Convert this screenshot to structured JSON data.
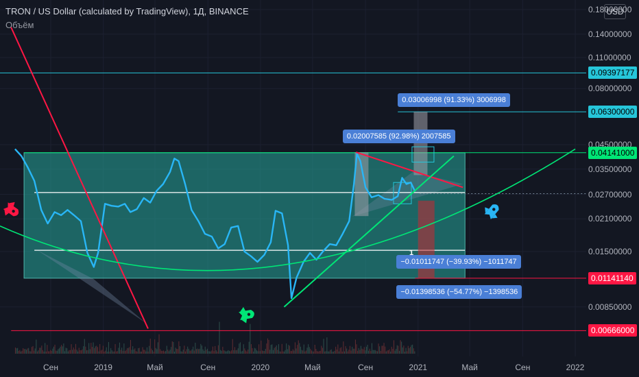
{
  "header": {
    "title": "TRON / US Dollar (calculated by TradingView), 1Д, BINANCE",
    "subtitle": "Объём",
    "currency": "USD"
  },
  "chart_data": {
    "type": "line",
    "ylim": [
      0.0058,
      0.18
    ],
    "yscale": "log",
    "yticks": [
      "0.18000000",
      "0.14000000",
      "0.11000000",
      "0.08000000",
      "0.04500000",
      "0.03500000",
      "0.02700000",
      "0.02100000",
      "0.01500000",
      "0.00850000"
    ],
    "ytick_values": [
      0.18,
      0.14,
      0.11,
      0.08,
      0.045,
      0.035,
      0.027,
      0.021,
      0.015,
      0.0085
    ],
    "xticks": [
      "Сен",
      "2019",
      "Май",
      "Сен",
      "2020",
      "Май",
      "Сен",
      "2021",
      "Май",
      "Сен",
      "2022"
    ],
    "xtick_dates": [
      "2018-09-01",
      "2019-01-01",
      "2019-05-01",
      "2019-09-01",
      "2020-01-01",
      "2020-05-01",
      "2020-09-01",
      "2021-01-01",
      "2021-05-01",
      "2021-09-01",
      "2022-01-01"
    ],
    "price_tags": [
      {
        "label": "0.09397177",
        "value": 0.09397177,
        "color": "#26c6da",
        "text": "#000000"
      },
      {
        "label": "0.06300000",
        "value": 0.063,
        "color": "#26c6da",
        "text": "#000000"
      },
      {
        "label": "0.04141000",
        "value": 0.04141,
        "color": "#00e676",
        "text": "#000000"
      },
      {
        "label": "0.01141140",
        "value": 0.0114114,
        "color": "#ff1744",
        "text": "#ffffff"
      },
      {
        "label": "0.00666000",
        "value": 0.00666,
        "color": "#ff1744",
        "text": "#ffffff"
      }
    ],
    "range_box": {
      "top": 0.04141,
      "bottom": 0.0114114,
      "start": "2018-07-01",
      "end": "2021-04-20"
    },
    "mid_lines": [
      0.0275,
      0.0152
    ],
    "measurements": [
      {
        "label": "0.03006998 (91.33%) 3006998",
        "from": 0.0329,
        "to": 0.063,
        "date": "2020-12-15"
      },
      {
        "label": "0.02007585 (92.98%) 2007585",
        "from": 0.0216,
        "to": 0.0416,
        "date": "2020-08-12"
      },
      {
        "label": "−0.01011747 (−39.93%) −1011747",
        "from": 0.0253,
        "to": 0.0152,
        "date": "2021-01-01"
      },
      {
        "label": "−0.01398536 (−54.77%) −1398536",
        "from": 0.0253,
        "to": 0.0114,
        "date": "2021-01-08"
      }
    ],
    "wave_label": "1",
    "series": [
      {
        "color": "#29b6f6",
        "points": [
          [
            "2018-06-10",
            0.043
          ],
          [
            "2018-06-25",
            0.04
          ],
          [
            "2018-07-10",
            0.0355
          ],
          [
            "2018-07-25",
            0.031
          ],
          [
            "2018-08-10",
            0.023
          ],
          [
            "2018-08-25",
            0.02
          ],
          [
            "2018-09-10",
            0.0225
          ],
          [
            "2018-09-25",
            0.0218
          ],
          [
            "2018-10-10",
            0.023
          ],
          [
            "2018-10-25",
            0.0218
          ],
          [
            "2018-11-10",
            0.0205
          ],
          [
            "2018-11-25",
            0.0148
          ],
          [
            "2018-12-10",
            0.0128
          ],
          [
            "2018-12-20",
            0.0148
          ],
          [
            "2019-01-05",
            0.0245
          ],
          [
            "2019-01-20",
            0.024
          ],
          [
            "2019-02-05",
            0.0238
          ],
          [
            "2019-02-20",
            0.0245
          ],
          [
            "2019-03-05",
            0.0225
          ],
          [
            "2019-03-20",
            0.0232
          ],
          [
            "2019-04-05",
            0.026
          ],
          [
            "2019-04-20",
            0.0248
          ],
          [
            "2019-05-05",
            0.028
          ],
          [
            "2019-05-20",
            0.03
          ],
          [
            "2019-06-05",
            0.034
          ],
          [
            "2019-06-15",
            0.039
          ],
          [
            "2019-06-25",
            0.038
          ],
          [
            "2019-07-10",
            0.03
          ],
          [
            "2019-07-25",
            0.023
          ],
          [
            "2019-08-10",
            0.0205
          ],
          [
            "2019-08-25",
            0.018
          ],
          [
            "2019-09-10",
            0.0175
          ],
          [
            "2019-09-25",
            0.0155
          ],
          [
            "2019-10-10",
            0.0162
          ],
          [
            "2019-10-25",
            0.0192
          ],
          [
            "2019-11-10",
            0.0195
          ],
          [
            "2019-11-25",
            0.015
          ],
          [
            "2019-12-10",
            0.0143
          ],
          [
            "2019-12-25",
            0.0135
          ],
          [
            "2020-01-10",
            0.0145
          ],
          [
            "2020-01-25",
            0.0165
          ],
          [
            "2020-02-05",
            0.0228
          ],
          [
            "2020-02-20",
            0.0222
          ],
          [
            "2020-03-05",
            0.016
          ],
          [
            "2020-03-13",
            0.0093
          ],
          [
            "2020-03-25",
            0.0115
          ],
          [
            "2020-04-10",
            0.0135
          ],
          [
            "2020-04-25",
            0.0148
          ],
          [
            "2020-05-10",
            0.0138
          ],
          [
            "2020-05-25",
            0.015
          ],
          [
            "2020-06-10",
            0.0162
          ],
          [
            "2020-06-25",
            0.016
          ],
          [
            "2020-07-10",
            0.018
          ],
          [
            "2020-07-25",
            0.0205
          ],
          [
            "2020-08-05",
            0.03
          ],
          [
            "2020-08-12",
            0.041
          ],
          [
            "2020-08-20",
            0.038
          ],
          [
            "2020-09-01",
            0.029
          ],
          [
            "2020-09-15",
            0.0262
          ],
          [
            "2020-10-01",
            0.0268
          ],
          [
            "2020-10-15",
            0.0258
          ],
          [
            "2020-11-01",
            0.0255
          ],
          [
            "2020-11-15",
            0.0265
          ],
          [
            "2020-11-25",
            0.032
          ],
          [
            "2020-12-05",
            0.03
          ],
          [
            "2020-12-15",
            0.0305
          ],
          [
            "2020-12-25",
            0.0278
          ]
        ]
      }
    ]
  }
}
